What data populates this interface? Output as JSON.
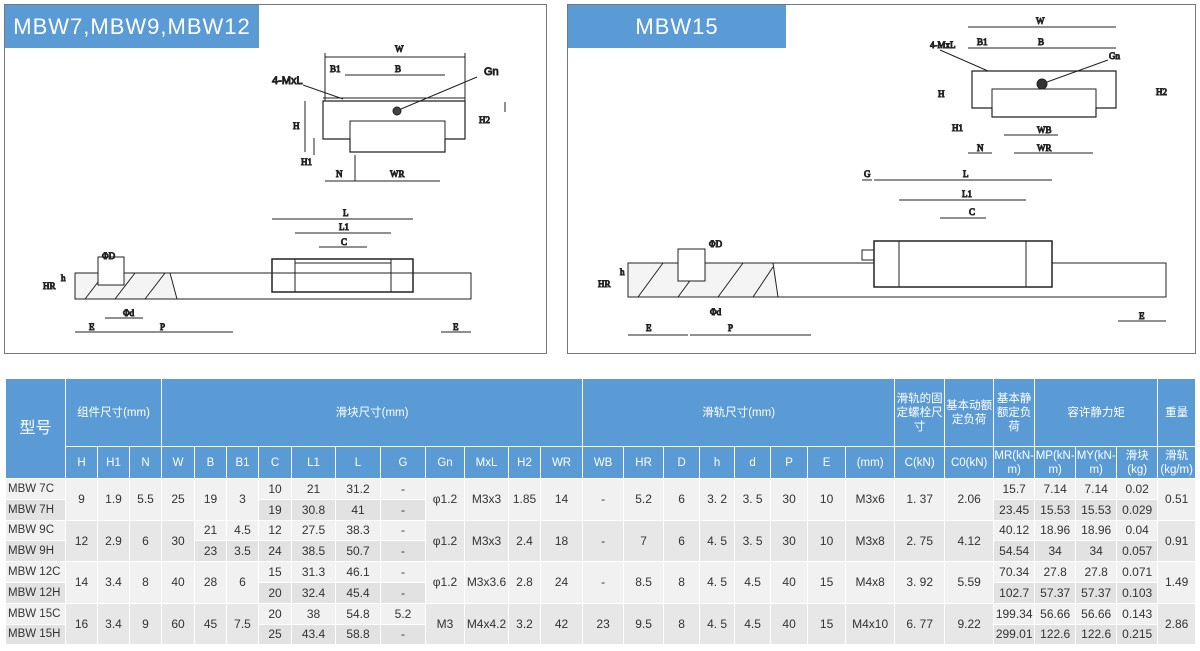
{
  "panels": [
    {
      "title": "MBW7,MBW9,MBW12",
      "labels": {
        "W": "W",
        "B1": "B1",
        "B": "B",
        "MxL": "4-MxL",
        "Gn": "Gn",
        "H": "H",
        "H1": "H1",
        "H2": "H2",
        "N": "N",
        "WR": "WR",
        "L": "L",
        "L1": "L1",
        "C": "C",
        "D": "ΦD",
        "h": "h",
        "HR": "HR",
        "d": "Φd",
        "E": "E",
        "P": "P"
      }
    },
    {
      "title": "MBW15",
      "labels": {
        "W": "W",
        "B1": "B1",
        "B": "B",
        "MxL": "4-MxL",
        "Gn": "Gn",
        "H": "H",
        "H1": "H1",
        "H2": "H2",
        "N": "N",
        "WR": "WR",
        "WB": "WB",
        "G": "G",
        "L": "L",
        "L1": "L1",
        "C": "C",
        "D": "ΦD",
        "h": "h",
        "HR": "HR",
        "d": "Φd",
        "E": "E",
        "P": "P"
      }
    }
  ],
  "table": {
    "header_top": [
      {
        "label": "型号",
        "rowspan": 2,
        "colspan": 1
      },
      {
        "label": "组件尺寸(mm)",
        "colspan": 3
      },
      {
        "label": "滑块尺寸(mm)",
        "colspan": 11
      },
      {
        "label": "滑轨尺寸(mm)",
        "colspan": 8
      },
      {
        "label": "滑轨的固定螺栓尺寸",
        "colspan": 1
      },
      {
        "label": "基本动额定负荷",
        "colspan": 1
      },
      {
        "label": "基本静额定负荷",
        "colspan": 1
      },
      {
        "label": "容许静力矩",
        "colspan": 3
      },
      {
        "label": "重量",
        "colspan": 2
      }
    ],
    "header_sub": [
      "H",
      "H1",
      "N",
      "W",
      "B",
      "B1",
      "C",
      "L1",
      "L",
      "G",
      "Gn",
      "MxL",
      "H2",
      "WR",
      "WB",
      "HR",
      "D",
      "h",
      "d",
      "P",
      "E",
      "(mm)",
      "C(kN)",
      "C0(kN)",
      "MR(kN-m)",
      "MP(kN-m)",
      "MY(kN-m)",
      "滑块(kg)",
      "滑轨(kg/m)"
    ],
    "groups": [
      {
        "shared": {
          "H": "9",
          "H1": "1.9",
          "N": "5.5",
          "W": "25",
          "B": "19",
          "B1": "3",
          "Gn": "φ1.2",
          "MxL": "M3x3",
          "H2": "1.85",
          "WR": "14",
          "WB": "-",
          "HR": "5.2",
          "D": "6",
          "h": "3. 2",
          "d": "3. 5",
          "P": "30",
          "E": "10",
          "bolt": "M3x6",
          "Ck": "1. 37",
          "C0": "2.06",
          "rail": "0.51"
        },
        "variants": [
          {
            "model": "MBW 7C",
            "C": "10",
            "L1": "21",
            "L": "31.2",
            "G": "-",
            "MR": "15.7",
            "MP": "7.14",
            "MY": "7.14",
            "slider": "0.02"
          },
          {
            "model": "MBW 7H",
            "C": "19",
            "L1": "30.8",
            "L": "41",
            "G": "-",
            "MR": "23.45",
            "MP": "15.53",
            "MY": "15.53",
            "slider": "0.029"
          }
        ]
      },
      {
        "shared": {
          "H": "12",
          "H1": "2.9",
          "N": "6",
          "W": "30",
          "Gn": "φ1.2",
          "MxL": "M3x3",
          "H2": "2.4",
          "WR": "18",
          "WB": "-",
          "HR": "7",
          "D": "6",
          "h": "4. 5",
          "d": "3. 5",
          "P": "30",
          "E": "10",
          "bolt": "M3x8",
          "Ck": "2. 75",
          "C0": "4.12",
          "rail": "0.91"
        },
        "variants": [
          {
            "model": "MBW 9C",
            "B": "21",
            "B1": "4.5",
            "C": "12",
            "L1": "27.5",
            "L": "38.3",
            "G": "-",
            "MR": "40.12",
            "MP": "18.96",
            "MY": "18.96",
            "slider": "0.04"
          },
          {
            "model": "MBW 9H",
            "B": "23",
            "B1": "3.5",
            "C": "24",
            "L1": "38.5",
            "L": "50.7",
            "G": "-",
            "MR": "54.54",
            "MP": "34",
            "MY": "34",
            "slider": "0.057"
          }
        ]
      },
      {
        "shared": {
          "H": "14",
          "H1": "3.4",
          "N": "8",
          "W": "40",
          "B": "28",
          "B1": "6",
          "Gn": "φ1.2",
          "MxL": "M3x3.6",
          "H2": "2.8",
          "WR": "24",
          "WB": "-",
          "HR": "8.5",
          "D": "8",
          "h": "4. 5",
          "d": "4.5",
          "P": "40",
          "E": "15",
          "bolt": "M4x8",
          "Ck": "3. 92",
          "C0": "5.59",
          "rail": "1.49"
        },
        "variants": [
          {
            "model": "MBW 12C",
            "C": "15",
            "L1": "31.3",
            "L": "46.1",
            "G": "-",
            "MR": "70.34",
            "MP": "27.8",
            "MY": "27.8",
            "slider": "0.071"
          },
          {
            "model": "MBW 12H",
            "C": "20",
            "L1": "32.4",
            "L": "45.4",
            "G": "-",
            "MR": "102.7",
            "MP": "57.37",
            "MY": "57.37",
            "slider": "0.103"
          }
        ]
      },
      {
        "shared": {
          "H": "16",
          "H1": "3.4",
          "N": "9",
          "W": "60",
          "B": "45",
          "B1": "7.5",
          "Gn": "M3",
          "MxL": "M4x4.2",
          "H2": "3.2",
          "WR": "42",
          "WB": "23",
          "HR": "9.5",
          "D": "8",
          "h": "4. 5",
          "d": "4.5",
          "P": "40",
          "E": "15",
          "bolt": "M4x10",
          "Ck": "6. 77",
          "C0": "9.22",
          "rail": "2.86"
        },
        "variants": [
          {
            "model": "MBW 15C",
            "C": "20",
            "L1": "38",
            "L": "54.8",
            "G": "5.2",
            "MR": "199.34",
            "MP": "56.66",
            "MY": "56.66",
            "slider": "0.143"
          },
          {
            "model": "MBW 15H",
            "C": "25",
            "L1": "43.4",
            "L": "58.8",
            "G": "-",
            "MR": "299.01",
            "MP": "122.6",
            "MY": "122.6",
            "slider": "0.215"
          }
        ]
      }
    ]
  },
  "colors": {
    "header": "#5b9bd5",
    "row_light": "#f1f1f1",
    "row_dark": "#e2e2e2"
  }
}
